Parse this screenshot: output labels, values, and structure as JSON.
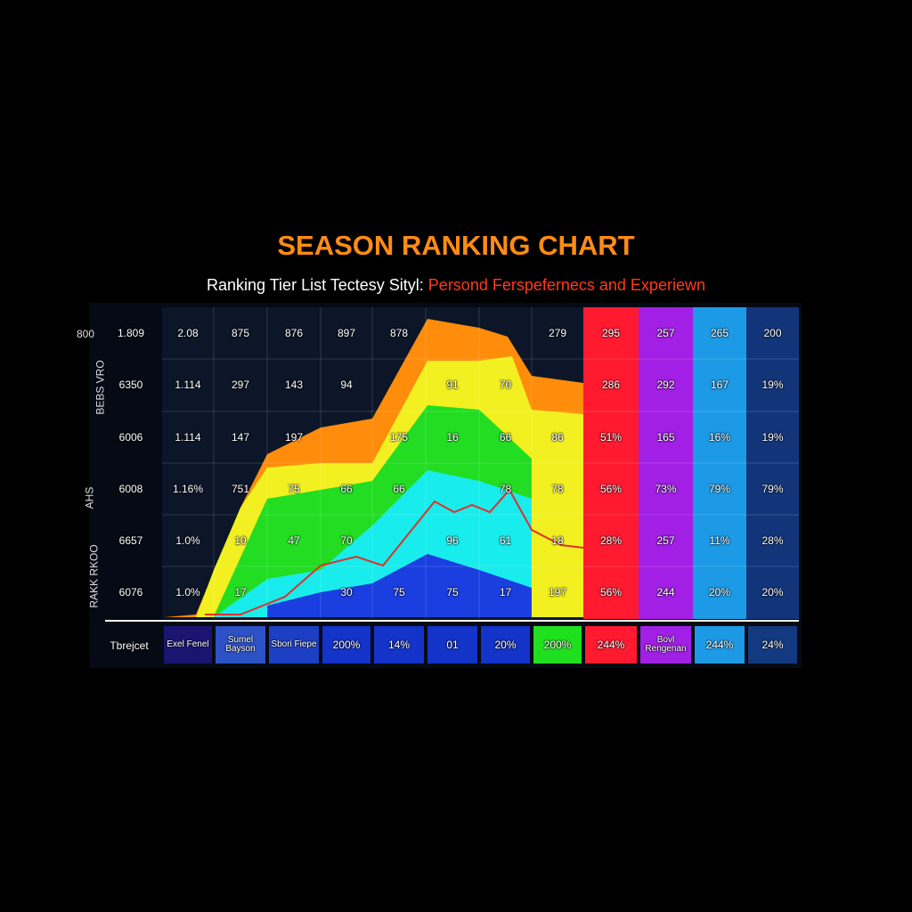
{
  "header": {
    "title": "SEASON RANKING CHART",
    "subtitle": "Ranking Tier List Tectesy Sityl:",
    "subtitle_highlight": "Persond Ferspefernecs and Experiewn"
  },
  "table": {
    "side_labels": [
      "800",
      "BEBS VRO",
      "AHS",
      "RAKK RKOO"
    ],
    "rows": [
      [
        "1.809",
        "2.08",
        "875",
        "876",
        "897",
        "878",
        null,
        null,
        "279",
        "295",
        "257",
        "265",
        "200"
      ],
      [
        "6350",
        "1.114",
        "297",
        "143",
        "94",
        null,
        "91",
        "70",
        null,
        "286",
        "292",
        "167",
        "19%"
      ],
      [
        "6006",
        "1.114",
        "147",
        "197",
        null,
        "175",
        "16",
        "66",
        "86",
        "51%",
        "165",
        "16%",
        "19%"
      ],
      [
        "6008",
        "1.16%",
        "751",
        "75",
        "66",
        "66",
        null,
        "78",
        "78",
        "56%",
        "73%",
        "79%",
        "79%"
      ],
      [
        "6657",
        "1.0%",
        "10",
        "47",
        "70",
        null,
        "96",
        "61",
        "18",
        "28%",
        "257",
        "11%",
        "28%"
      ],
      [
        "6076",
        "1.0%",
        "17",
        null,
        "30",
        "75",
        "75",
        "17",
        "197",
        "56%",
        "244",
        "20%",
        "20%"
      ]
    ],
    "footer_label": "Tbrejcet",
    "footer": [
      "Exel Fenel",
      "Sumel Bayson",
      "Sbori Fiepe",
      "200%",
      "14%",
      "01",
      "20%",
      "200%",
      "244%",
      "Bovl Rengenan",
      "244%",
      "24%"
    ]
  }
}
